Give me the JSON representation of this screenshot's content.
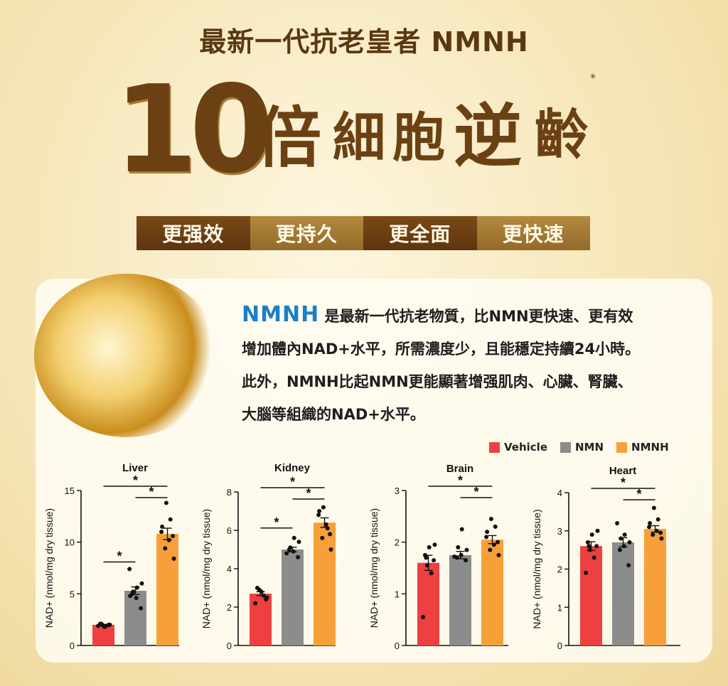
{
  "headline": "最新一代抗老皇者 NMNH",
  "big": {
    "ten": "10",
    "w1": "倍",
    "w2": "細",
    "w3": "胞",
    "w4": "逆",
    "w5": "齡",
    "mark": "*"
  },
  "tags": [
    "更强效",
    "更持久",
    "更全面",
    "更快速"
  ],
  "intro": {
    "brand": "NMNH",
    "line1": "是最新一代抗老物質，比NMN更快速、更有效",
    "line2": "增加體內NAD+水平，所需濃度少，且能穩定持續24小時。",
    "line3": "此外，NMNH比起NMN更能顯著增强肌肉、心臟、腎臟、",
    "line4": "大腦等組織的NAD+水平。"
  },
  "legend": [
    {
      "label": "Vehicle",
      "color": "#ee4040"
    },
    {
      "label": "NMN",
      "color": "#8c8c8c"
    },
    {
      "label": "NMNH",
      "color": "#f7a03a"
    }
  ],
  "chart_data": [
    {
      "type": "bar",
      "title": "Liver",
      "ylabel": "NAD+ (nmol/mg dry tissue)",
      "ylim": [
        0,
        15
      ],
      "yticks": [
        0,
        5,
        10,
        15
      ],
      "categories": [
        "Vehicle",
        "NMN",
        "NMNH"
      ],
      "values": [
        2.0,
        5.3,
        10.8
      ],
      "points": [
        [
          1.9,
          1.9,
          2.0,
          2.0,
          2.1,
          1.8,
          2.0,
          2.1
        ],
        [
          3.6,
          5.0,
          4.6,
          6.0,
          5.2,
          5.6,
          7.4,
          4.8
        ],
        [
          8.4,
          9.4,
          10.2,
          11.0,
          11.5,
          12.2,
          13.8,
          10.6
        ]
      ],
      "significance": [
        {
          "from": 0,
          "to": 2,
          "label": "*"
        },
        {
          "from": 1,
          "to": 2,
          "label": "*"
        },
        {
          "from": 0,
          "to": 1,
          "label": "*"
        }
      ]
    },
    {
      "type": "bar",
      "title": "Kidney",
      "ylabel": "NAD+ (nmol/mg dry tissue)",
      "ylim": [
        0,
        8
      ],
      "yticks": [
        0,
        2,
        4,
        6,
        8
      ],
      "categories": [
        "Vehicle",
        "NMN",
        "NMNH"
      ],
      "values": [
        2.7,
        5.0,
        6.4
      ],
      "points": [
        [
          2.2,
          2.6,
          2.9,
          2.4,
          3.0,
          2.8,
          2.5
        ],
        [
          4.6,
          5.0,
          4.9,
          5.4,
          5.1,
          5.6,
          4.8
        ],
        [
          5.0,
          5.6,
          6.3,
          6.8,
          7.0,
          6.1,
          7.2,
          5.8
        ]
      ],
      "significance": [
        {
          "from": 0,
          "to": 2,
          "label": "*"
        },
        {
          "from": 1,
          "to": 2,
          "label": "*"
        },
        {
          "from": 0,
          "to": 1,
          "label": "*"
        }
      ]
    },
    {
      "type": "bar",
      "title": "Brain",
      "ylabel": "NAD+ (nmol/mg dry tissue)",
      "ylim": [
        0,
        3
      ],
      "yticks": [
        0,
        1,
        2,
        3
      ],
      "categories": [
        "Vehicle",
        "NMN",
        "NMNH"
      ],
      "values": [
        1.6,
        1.75,
        2.05
      ],
      "points": [
        [
          0.55,
          1.4,
          1.55,
          1.65,
          1.75,
          1.9,
          1.95,
          1.7
        ],
        [
          1.65,
          1.7,
          1.75,
          1.85,
          1.9,
          2.25,
          1.72
        ],
        [
          1.75,
          1.85,
          1.95,
          2.1,
          2.2,
          2.3,
          2.45,
          2.0
        ]
      ],
      "significance": [
        {
          "from": 0,
          "to": 2,
          "label": "*"
        },
        {
          "from": 1,
          "to": 2,
          "label": "*"
        }
      ]
    },
    {
      "type": "bar",
      "title": "Heart",
      "ylabel": "NAD+ (nmol/mg dry tissue)",
      "ylim": [
        0,
        4
      ],
      "yticks": [
        0,
        1,
        2,
        3,
        4
      ],
      "categories": [
        "Vehicle",
        "NMN",
        "NMNH"
      ],
      "values": [
        2.6,
        2.7,
        3.05
      ],
      "points": [
        [
          1.9,
          2.3,
          2.5,
          2.6,
          2.7,
          2.9,
          3.0,
          2.6
        ],
        [
          2.1,
          2.5,
          2.6,
          2.7,
          2.8,
          2.9,
          3.2
        ],
        [
          2.8,
          2.9,
          3.0,
          3.1,
          3.2,
          3.3,
          3.6,
          2.95
        ]
      ],
      "significance": [
        {
          "from": 0,
          "to": 2,
          "label": "*"
        },
        {
          "from": 1,
          "to": 2,
          "label": "*"
        }
      ]
    }
  ]
}
